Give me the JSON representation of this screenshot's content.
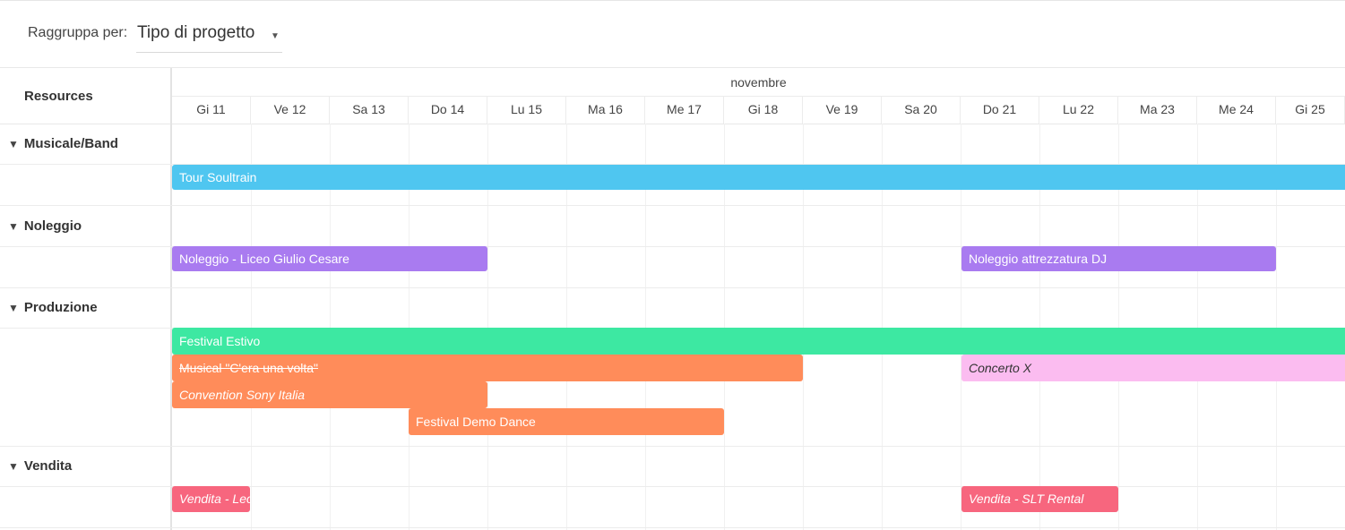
{
  "toolbar": {
    "group_by_label": "Raggruppa per:",
    "group_by_value": "Tipo di progetto"
  },
  "header": {
    "resources_label": "Resources",
    "month": "novembre",
    "days": [
      "Gi 11",
      "Ve 12",
      "Sa 13",
      "Do 14",
      "Lu 15",
      "Ma 16",
      "Me 17",
      "Gi 18",
      "Ve 19",
      "Sa 20",
      "Do 21",
      "Lu 22",
      "Ma 23",
      "Me 24",
      "Gi 25"
    ]
  },
  "groups": [
    {
      "name": "Musicale/Band"
    },
    {
      "name": "Noleggio"
    },
    {
      "name": "Produzione"
    },
    {
      "name": "Vendita"
    }
  ],
  "events": {
    "tour_soultrain": {
      "label": "Tour Soultrain",
      "color": "#4fc6f0",
      "start": "Gi 11",
      "end": "Gi 25",
      "continues": true
    },
    "noleggio_liceo": {
      "label": "Noleggio - Liceo Giulio Cesare",
      "color": "#a97bf0",
      "start": "Gi 11",
      "end": "Sa 13"
    },
    "noleggio_dj": {
      "label": "Noleggio attrezzatura DJ",
      "color": "#a97bf0",
      "start": "Do 21",
      "end": "Me 24"
    },
    "festival_estivo": {
      "label": "Festival Estivo",
      "color": "#3de8a2",
      "start": "Gi 11",
      "end": "Gi 25",
      "continues": true
    },
    "musical": {
      "label": "Musical \"C'era una volta\"",
      "color": "#ff8c5a",
      "start": "Gi 11",
      "end": "Gi 18",
      "strikethrough": true
    },
    "concerto_x": {
      "label": "Concerto X",
      "color": "#fbbcf0",
      "start": "Do 21",
      "end": "Gi 25",
      "continues": true,
      "italic": true
    },
    "convention_sony": {
      "label": "Convention Sony Italia",
      "color": "#ff8c5a",
      "start": "Gi 11",
      "end": "Sa 13",
      "italic": true
    },
    "festival_demo": {
      "label": "Festival Demo Dance",
      "color": "#ff8c5a",
      "start": "Do 14",
      "end": "Me 17"
    },
    "vendita_leo": {
      "label": "Vendita - Leo",
      "color": "#f7667e",
      "start": "Gi 11",
      "end": "Gi 11",
      "italic": true
    },
    "vendita_slt": {
      "label": "Vendita - SLT Rental",
      "color": "#f7667e",
      "start": "Do 21",
      "end": "Lu 22",
      "italic": true
    }
  }
}
